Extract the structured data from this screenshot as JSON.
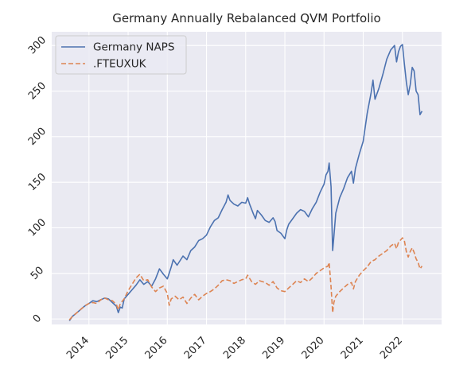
{
  "chart_data": {
    "type": "line",
    "title": "Germany Annually Rebalanced QVM Portfolio",
    "xlabel": "",
    "ylabel": "",
    "x_range": [
      2013.05,
      2023.0
    ],
    "ylim": [
      -6,
      315
    ],
    "x_ticks": [
      {
        "value": 2014,
        "label": "2014"
      },
      {
        "value": 2015,
        "label": "2015"
      },
      {
        "value": 2016,
        "label": "2016"
      },
      {
        "value": 2017,
        "label": "2017"
      },
      {
        "value": 2018,
        "label": "2018"
      },
      {
        "value": 2019,
        "label": "2019"
      },
      {
        "value": 2020,
        "label": "2020"
      },
      {
        "value": 2021,
        "label": "2021"
      },
      {
        "value": 2022,
        "label": "2022"
      }
    ],
    "y_ticks": [
      {
        "value": 0,
        "label": "0"
      },
      {
        "value": 50,
        "label": "50"
      },
      {
        "value": 100,
        "label": "100"
      },
      {
        "value": 150,
        "label": "150"
      },
      {
        "value": 200,
        "label": "200"
      },
      {
        "value": 250,
        "label": "250"
      },
      {
        "value": 300,
        "label": "300"
      }
    ],
    "grid": true,
    "legend_position": "top-left",
    "series": [
      {
        "name": "Germany NAPS",
        "color": "#4c72b0",
        "style": "solid",
        "points": [
          [
            2013.5,
            -2
          ],
          [
            2013.58,
            3
          ],
          [
            2013.67,
            6
          ],
          [
            2013.75,
            9
          ],
          [
            2013.83,
            12
          ],
          [
            2013.92,
            15
          ],
          [
            2014.0,
            17
          ],
          [
            2014.1,
            20
          ],
          [
            2014.2,
            19
          ],
          [
            2014.3,
            21
          ],
          [
            2014.4,
            23
          ],
          [
            2014.5,
            22
          ],
          [
            2014.6,
            18
          ],
          [
            2014.7,
            14
          ],
          [
            2014.75,
            7
          ],
          [
            2014.8,
            13
          ],
          [
            2014.85,
            12
          ],
          [
            2014.9,
            22
          ],
          [
            2015.0,
            27
          ],
          [
            2015.1,
            32
          ],
          [
            2015.2,
            37
          ],
          [
            2015.3,
            43
          ],
          [
            2015.4,
            38
          ],
          [
            2015.5,
            41
          ],
          [
            2015.6,
            36
          ],
          [
            2015.7,
            44
          ],
          [
            2015.8,
            55
          ],
          [
            2015.9,
            49
          ],
          [
            2016.0,
            44
          ],
          [
            2016.1,
            57
          ],
          [
            2016.15,
            65
          ],
          [
            2016.25,
            59
          ],
          [
            2016.4,
            69
          ],
          [
            2016.5,
            65
          ],
          [
            2016.6,
            75
          ],
          [
            2016.7,
            79
          ],
          [
            2016.8,
            86
          ],
          [
            2016.9,
            88
          ],
          [
            2017.0,
            92
          ],
          [
            2017.1,
            101
          ],
          [
            2017.2,
            108
          ],
          [
            2017.3,
            111
          ],
          [
            2017.4,
            120
          ],
          [
            2017.5,
            128
          ],
          [
            2017.55,
            136
          ],
          [
            2017.6,
            130
          ],
          [
            2017.7,
            126
          ],
          [
            2017.8,
            124
          ],
          [
            2017.9,
            128
          ],
          [
            2018.0,
            127
          ],
          [
            2018.05,
            133
          ],
          [
            2018.1,
            126
          ],
          [
            2018.2,
            115
          ],
          [
            2018.25,
            110
          ],
          [
            2018.3,
            119
          ],
          [
            2018.4,
            114
          ],
          [
            2018.5,
            108
          ],
          [
            2018.6,
            106
          ],
          [
            2018.7,
            111
          ],
          [
            2018.75,
            107
          ],
          [
            2018.8,
            97
          ],
          [
            2018.9,
            94
          ],
          [
            2019.0,
            88
          ],
          [
            2019.05,
            98
          ],
          [
            2019.1,
            104
          ],
          [
            2019.2,
            110
          ],
          [
            2019.3,
            116
          ],
          [
            2019.4,
            120
          ],
          [
            2019.5,
            118
          ],
          [
            2019.6,
            112
          ],
          [
            2019.7,
            121
          ],
          [
            2019.8,
            128
          ],
          [
            2019.9,
            139
          ],
          [
            2020.0,
            148
          ],
          [
            2020.05,
            158
          ],
          [
            2020.1,
            162
          ],
          [
            2020.13,
            171
          ],
          [
            2020.18,
            145
          ],
          [
            2020.2,
            108
          ],
          [
            2020.22,
            75
          ],
          [
            2020.25,
            90
          ],
          [
            2020.3,
            116
          ],
          [
            2020.4,
            133
          ],
          [
            2020.5,
            143
          ],
          [
            2020.6,
            155
          ],
          [
            2020.7,
            162
          ],
          [
            2020.75,
            149
          ],
          [
            2020.8,
            165
          ],
          [
            2020.9,
            181
          ],
          [
            2021.0,
            195
          ],
          [
            2021.1,
            225
          ],
          [
            2021.2,
            248
          ],
          [
            2021.25,
            262
          ],
          [
            2021.3,
            241
          ],
          [
            2021.4,
            253
          ],
          [
            2021.5,
            268
          ],
          [
            2021.6,
            285
          ],
          [
            2021.7,
            295
          ],
          [
            2021.8,
            300
          ],
          [
            2021.85,
            282
          ],
          [
            2021.9,
            293
          ],
          [
            2021.95,
            299
          ],
          [
            2022.0,
            301
          ],
          [
            2022.05,
            280
          ],
          [
            2022.1,
            260
          ],
          [
            2022.15,
            246
          ],
          [
            2022.2,
            257
          ],
          [
            2022.25,
            276
          ],
          [
            2022.3,
            272
          ],
          [
            2022.35,
            250
          ],
          [
            2022.4,
            246
          ],
          [
            2022.45,
            224
          ],
          [
            2022.5,
            228
          ]
        ]
      },
      {
        "name": ".FTEUXUK",
        "color": "#dd8452",
        "style": "dashed",
        "points": [
          [
            2013.5,
            -1
          ],
          [
            2013.58,
            3
          ],
          [
            2013.67,
            6
          ],
          [
            2013.75,
            9
          ],
          [
            2013.83,
            12
          ],
          [
            2013.92,
            15
          ],
          [
            2014.0,
            17
          ],
          [
            2014.1,
            18
          ],
          [
            2014.2,
            17
          ],
          [
            2014.3,
            21
          ],
          [
            2014.4,
            23
          ],
          [
            2014.5,
            21
          ],
          [
            2014.6,
            20
          ],
          [
            2014.7,
            16
          ],
          [
            2014.75,
            10
          ],
          [
            2014.8,
            17
          ],
          [
            2014.9,
            22
          ],
          [
            2015.0,
            31
          ],
          [
            2015.1,
            38
          ],
          [
            2015.2,
            45
          ],
          [
            2015.3,
            49
          ],
          [
            2015.4,
            42
          ],
          [
            2015.5,
            43
          ],
          [
            2015.6,
            35
          ],
          [
            2015.7,
            30
          ],
          [
            2015.8,
            34
          ],
          [
            2015.9,
            36
          ],
          [
            2016.0,
            28
          ],
          [
            2016.05,
            15
          ],
          [
            2016.1,
            22
          ],
          [
            2016.2,
            25
          ],
          [
            2016.3,
            21
          ],
          [
            2016.4,
            24
          ],
          [
            2016.5,
            17
          ],
          [
            2016.6,
            23
          ],
          [
            2016.7,
            27
          ],
          [
            2016.8,
            21
          ],
          [
            2016.9,
            25
          ],
          [
            2017.0,
            28
          ],
          [
            2017.1,
            30
          ],
          [
            2017.2,
            33
          ],
          [
            2017.3,
            37
          ],
          [
            2017.4,
            42
          ],
          [
            2017.5,
            43
          ],
          [
            2017.6,
            42
          ],
          [
            2017.7,
            39
          ],
          [
            2017.8,
            41
          ],
          [
            2017.9,
            43
          ],
          [
            2018.0,
            44
          ],
          [
            2018.05,
            48
          ],
          [
            2018.15,
            41
          ],
          [
            2018.25,
            38
          ],
          [
            2018.35,
            42
          ],
          [
            2018.5,
            40
          ],
          [
            2018.6,
            37
          ],
          [
            2018.7,
            41
          ],
          [
            2018.8,
            34
          ],
          [
            2018.9,
            31
          ],
          [
            2019.0,
            30
          ],
          [
            2019.1,
            34
          ],
          [
            2019.2,
            38
          ],
          [
            2019.3,
            42
          ],
          [
            2019.4,
            40
          ],
          [
            2019.5,
            44
          ],
          [
            2019.6,
            41
          ],
          [
            2019.7,
            45
          ],
          [
            2019.8,
            50
          ],
          [
            2019.9,
            53
          ],
          [
            2020.0,
            56
          ],
          [
            2020.1,
            58
          ],
          [
            2020.13,
            62
          ],
          [
            2020.18,
            35
          ],
          [
            2020.22,
            7
          ],
          [
            2020.25,
            18
          ],
          [
            2020.3,
            25
          ],
          [
            2020.4,
            30
          ],
          [
            2020.5,
            34
          ],
          [
            2020.6,
            38
          ],
          [
            2020.7,
            40
          ],
          [
            2020.75,
            33
          ],
          [
            2020.8,
            41
          ],
          [
            2020.9,
            48
          ],
          [
            2021.0,
            53
          ],
          [
            2021.1,
            57
          ],
          [
            2021.2,
            63
          ],
          [
            2021.3,
            65
          ],
          [
            2021.4,
            69
          ],
          [
            2021.5,
            72
          ],
          [
            2021.6,
            75
          ],
          [
            2021.7,
            80
          ],
          [
            2021.8,
            83
          ],
          [
            2021.85,
            77
          ],
          [
            2021.9,
            84
          ],
          [
            2022.0,
            89
          ],
          [
            2022.05,
            86
          ],
          [
            2022.1,
            74
          ],
          [
            2022.15,
            68
          ],
          [
            2022.2,
            74
          ],
          [
            2022.25,
            78
          ],
          [
            2022.3,
            73
          ],
          [
            2022.35,
            66
          ],
          [
            2022.4,
            62
          ],
          [
            2022.45,
            55
          ],
          [
            2022.5,
            58
          ]
        ]
      }
    ]
  }
}
